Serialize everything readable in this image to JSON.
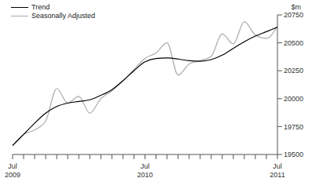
{
  "chart_data": {
    "type": "line",
    "y_label": "$m",
    "categories": [
      "Jul 2009",
      null,
      null,
      null,
      null,
      null,
      null,
      null,
      null,
      null,
      null,
      null,
      "Jul 2010",
      null,
      null,
      null,
      null,
      null,
      null,
      null,
      null,
      null,
      null,
      null,
      "Jul 2011"
    ],
    "series": [
      {
        "name": "Trend",
        "color": "#000000",
        "values": [
          19580,
          19680,
          19780,
          19870,
          19930,
          19960,
          19975,
          19990,
          20030,
          20080,
          20160,
          20250,
          20330,
          20360,
          20365,
          20355,
          20340,
          20335,
          20350,
          20390,
          20450,
          20510,
          20560,
          20600,
          20640
        ]
      },
      {
        "name": "Seasonally Adjusted",
        "color": "#aaaaaa",
        "values": [
          19580,
          19680,
          19720,
          19800,
          20090,
          19960,
          20020,
          19870,
          20000,
          20070,
          20160,
          20260,
          20360,
          20410,
          20500,
          20210,
          20310,
          20340,
          20380,
          20580,
          20490,
          20690,
          20570,
          20540,
          20650
        ]
      }
    ],
    "ylim": [
      19500,
      20750
    ],
    "yticks": [
      19500,
      19750,
      20000,
      20250,
      20500,
      20750
    ],
    "legend": "upper left",
    "grid": false
  }
}
